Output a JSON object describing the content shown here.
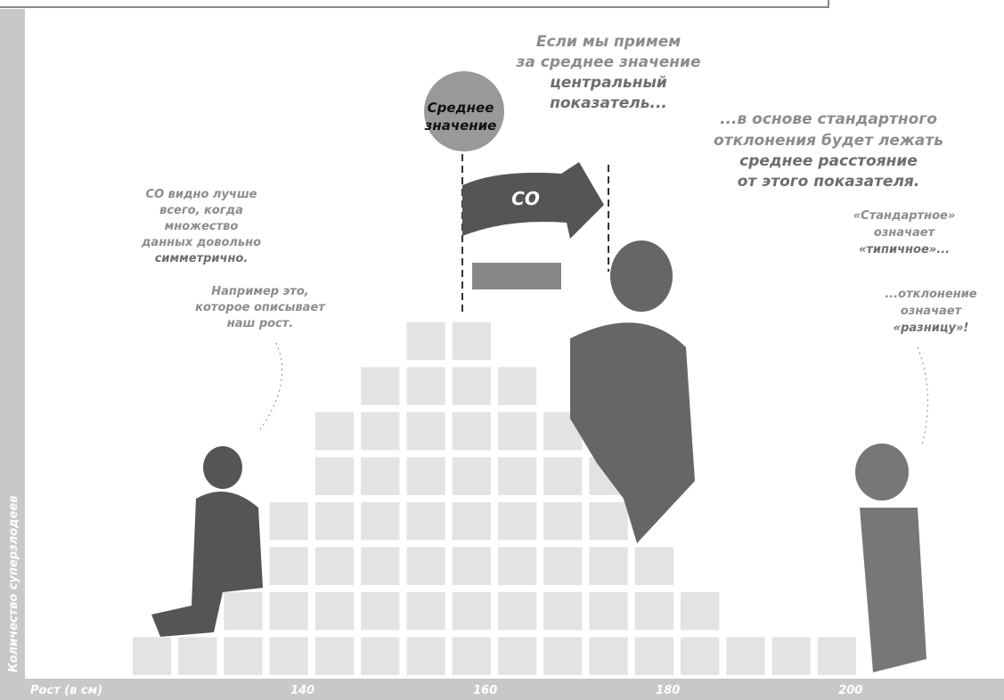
{
  "chart_data": {
    "type": "histogram",
    "xlabel": "Рост (в см)",
    "ylabel": "Количество суперзлодеев",
    "bins": [
      121,
      126,
      131,
      136,
      141,
      146,
      151,
      156,
      161,
      166,
      171,
      176,
      181,
      186,
      191,
      196,
      201
    ],
    "counts": [
      1,
      1,
      2,
      4,
      6,
      7,
      8,
      8,
      7,
      6,
      5,
      3,
      2,
      1,
      1,
      1
    ],
    "color": "#e3e3e3",
    "xlim": [
      109.6,
      216.8
    ],
    "ylim": [
      0,
      15
    ],
    "xticks": [
      140,
      160,
      180,
      200
    ],
    "mean_label": [
      "Среднее",
      "значение"
    ],
    "sd_label": "СО",
    "annotations": [
      [
        "Если мы примем",
        "за среднее значение",
        "центральный",
        "показатель..."
      ],
      [
        "...в основе стандартного",
        "отклонения будет лежать",
        "среднее расстояние",
        "от этого показателя."
      ],
      [
        "«Стандартное»",
        "означает",
        "«типичное»..."
      ],
      [
        "СО видно лучше",
        "всего, когда",
        "множество",
        "данных довольно",
        "симметрично."
      ],
      [
        "Например это,",
        "которое описывает",
        "наш рост."
      ],
      [
        "...отклонение",
        "означает",
        "«разницу»!"
      ]
    ]
  }
}
